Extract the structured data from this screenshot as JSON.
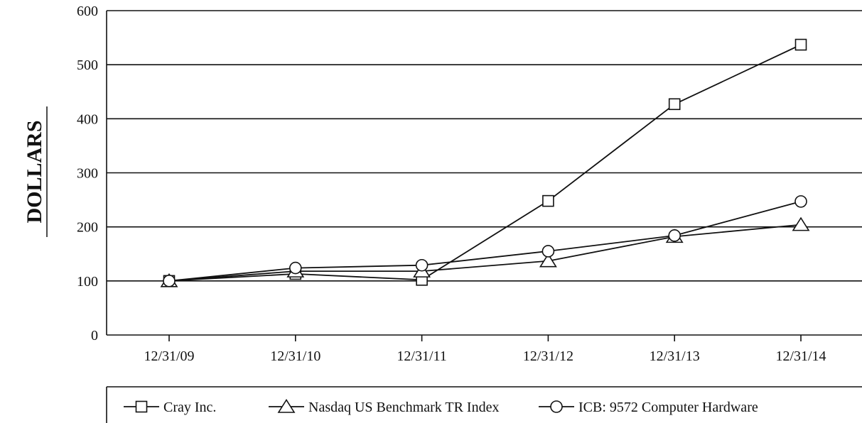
{
  "chart_data": {
    "type": "line",
    "title": "",
    "xlabel": "",
    "ylabel": "DOLLARS",
    "categories": [
      "12/31/09",
      "12/31/10",
      "12/31/11",
      "12/31/12",
      "12/31/13",
      "12/31/14"
    ],
    "ylim": [
      0,
      600
    ],
    "yticks": [
      0,
      100,
      200,
      300,
      400,
      500,
      600
    ],
    "grid": "horizontal",
    "legend_position": "bottom",
    "series": [
      {
        "name": "Cray Inc.",
        "marker": "square",
        "values": [
          100,
          113,
          102,
          248,
          427,
          537
        ]
      },
      {
        "name": "Nasdaq US Benchmark TR Index",
        "marker": "triangle",
        "values": [
          100,
          118,
          118,
          137,
          182,
          204
        ]
      },
      {
        "name": "ICB: 9572 Computer Hardware",
        "marker": "circle",
        "values": [
          100,
          124,
          129,
          155,
          184,
          247
        ]
      }
    ],
    "colors": {
      "line": "#111111",
      "marker_fill": "#ffffff"
    }
  }
}
